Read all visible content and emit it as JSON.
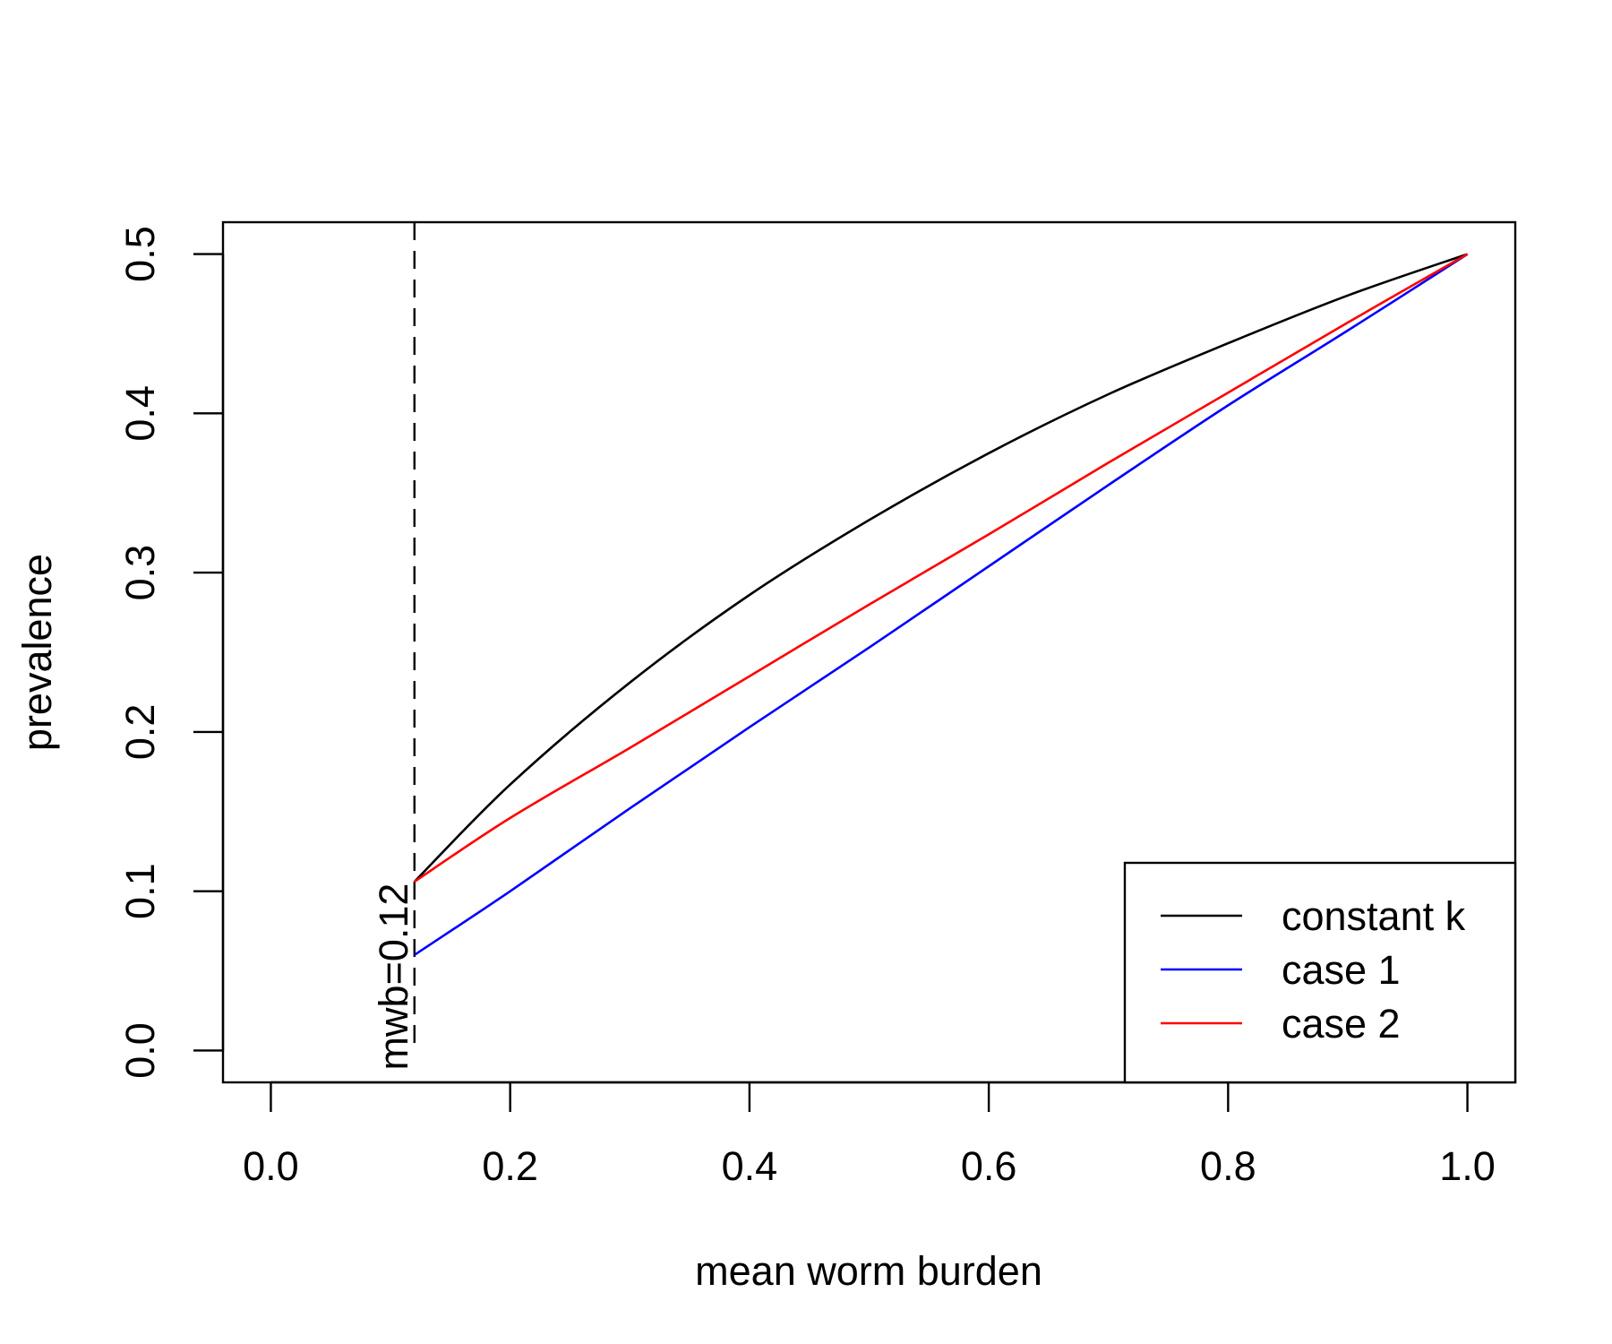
{
  "chart_data": {
    "type": "line",
    "title": "",
    "xlabel": "mean worm burden",
    "ylabel": "prevalence",
    "xlim": [
      -0.04,
      1.04
    ],
    "ylim": [
      -0.02,
      0.52
    ],
    "x_ticks": [
      0.0,
      0.2,
      0.4,
      0.6,
      0.8,
      1.0
    ],
    "x_tick_labels": [
      "0.0",
      "0.2",
      "0.4",
      "0.6",
      "0.8",
      "1.0"
    ],
    "y_ticks": [
      0.0,
      0.1,
      0.2,
      0.3,
      0.4,
      0.5
    ],
    "y_tick_labels": [
      "0.0",
      "0.1",
      "0.2",
      "0.3",
      "0.4",
      "0.5"
    ],
    "grid": false,
    "legend_position": "bottom-right",
    "series": [
      {
        "name": "constant k",
        "color": "#000000",
        "x": [
          0.12,
          0.2,
          0.3,
          0.4,
          0.5,
          0.6,
          0.7,
          0.8,
          0.9,
          1.0
        ],
        "values": [
          0.106,
          0.167,
          0.231,
          0.286,
          0.333,
          0.375,
          0.412,
          0.444,
          0.474,
          0.5
        ]
      },
      {
        "name": "case 1",
        "color": "#0000ff",
        "x": [
          0.12,
          0.2,
          0.3,
          0.4,
          0.5,
          0.6,
          0.7,
          0.8,
          0.9,
          1.0
        ],
        "values": [
          0.06,
          0.1,
          0.152,
          0.203,
          0.253,
          0.304,
          0.355,
          0.405,
          0.452,
          0.5
        ]
      },
      {
        "name": "case 2",
        "color": "#ff0000",
        "x": [
          0.12,
          0.2,
          0.3,
          0.4,
          0.5,
          0.6,
          0.7,
          0.8,
          0.9,
          1.0
        ],
        "values": [
          0.106,
          0.146,
          0.19,
          0.235,
          0.28,
          0.324,
          0.369,
          0.413,
          0.457,
          0.5
        ]
      }
    ],
    "reference_line": {
      "x": 0.12,
      "style": "dashed",
      "label": "mwb=0.12"
    }
  }
}
